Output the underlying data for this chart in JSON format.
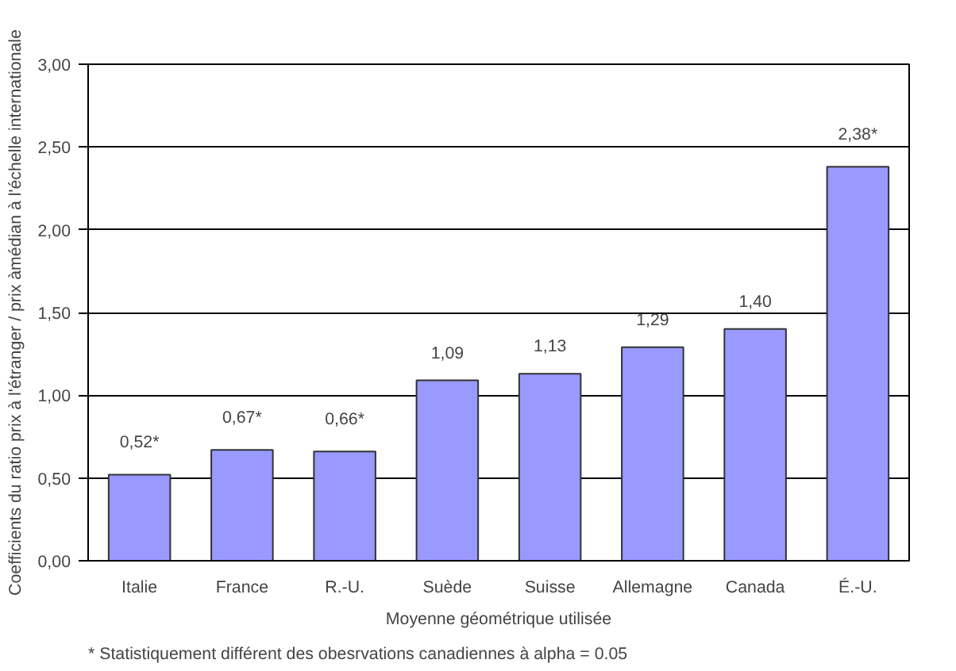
{
  "chart_data": {
    "type": "bar",
    "xlabel": "Moyenne géométrique utilisée",
    "ylabel": "Coefficients du ratio prix à l'étranger / prix àmédian à l'échelle internationale",
    "categories": [
      "Italie",
      "France",
      "R.-U.",
      "Suède",
      "Suisse",
      "Allemagne",
      "Canada",
      "É.-U."
    ],
    "values": [
      0.52,
      0.67,
      0.66,
      1.09,
      1.13,
      1.29,
      1.4,
      2.38
    ],
    "value_labels": [
      "0,52*",
      "0,67*",
      "0,66*",
      "1,09",
      "1,13",
      "1,29",
      "1,40",
      "2,38*"
    ],
    "color": "#9999ff",
    "ylim": [
      0,
      3
    ],
    "yticks": [
      {
        "value": 0,
        "label": "0,00"
      },
      {
        "value": 0.5,
        "label": "0,50"
      },
      {
        "value": 1,
        "label": "1,00"
      },
      {
        "value": 1.5,
        "label": "1,50"
      },
      {
        "value": 2,
        "label": "2,00"
      },
      {
        "value": 2.5,
        "label": "2,50"
      },
      {
        "value": 3,
        "label": "3,00"
      }
    ],
    "grid": "y",
    "annotations": [
      "* Statistiquement différent des obesrvations canadiennes à alpha = 0.05"
    ]
  }
}
